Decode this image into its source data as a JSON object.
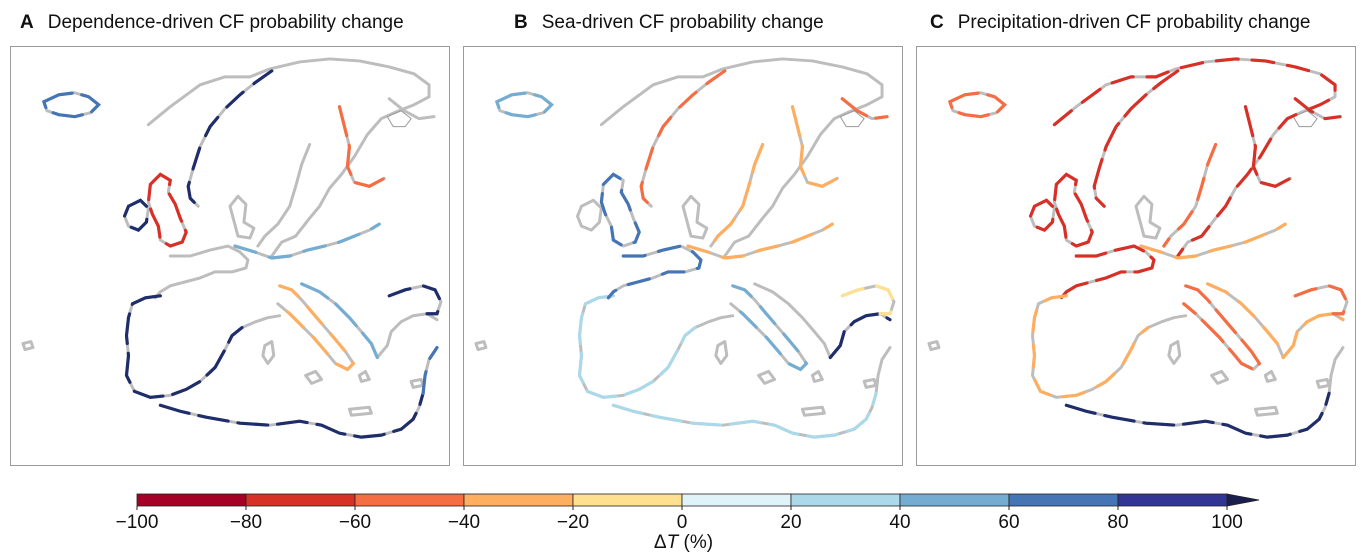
{
  "panels": [
    {
      "letter": "A",
      "title": "Dependence-driven CF probability change"
    },
    {
      "letter": "B",
      "title": "Sea-driven CF probability change"
    },
    {
      "letter": "C",
      "title": "Precipitation-driven CF probability change"
    }
  ],
  "colorbar": {
    "ticks": [
      "−100",
      "−80",
      "−60",
      "−40",
      "−20",
      "0",
      "20",
      "40",
      "60",
      "80",
      "100"
    ],
    "colors": [
      "#a50026",
      "#d73027",
      "#f46d43",
      "#fdae61",
      "#fee090",
      "#e0f3f8",
      "#abd9e9",
      "#74add1",
      "#4575b4",
      "#313695"
    ],
    "extend_color": "#1a1f4d",
    "label_symbol": "Δ",
    "label_var": "T",
    "label_unit": " (%)"
  },
  "coast_color": "#bdbdbd"
}
